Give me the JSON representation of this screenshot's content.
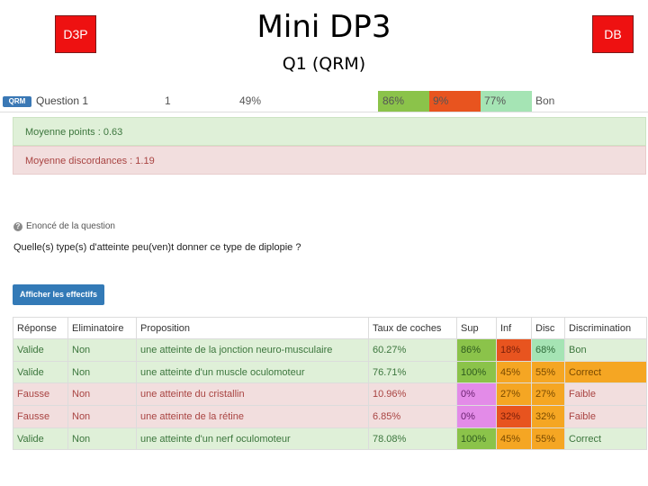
{
  "badges": {
    "left": "D3P",
    "right": "DB"
  },
  "slide": {
    "title": "Mini DP3",
    "subtitle": "Q1 (QRM)"
  },
  "summary": {
    "tag": "QRM",
    "question": "Question 1",
    "number": "1",
    "percent": "49%",
    "sup": "86%",
    "inf": "9%",
    "disc": "77%",
    "rating": "Bon"
  },
  "stats": {
    "mean_points": "Moyenne points : 0.63",
    "mean_discordance": "Moyenne discordances : 1.19"
  },
  "statement": {
    "icon": "info-icon",
    "header": "Enoncé de la question",
    "text": "Quelle(s) type(s) d'atteinte peu(ven)t donner ce type de diplopie ?"
  },
  "button": {
    "show_counts": "Afficher les effectifs"
  },
  "table": {
    "headers": [
      "Réponse",
      "Eliminatoire",
      "Proposition",
      "Taux de coches",
      "Sup",
      "Inf",
      "Disc",
      "Discrimination"
    ],
    "rows": [
      [
        "Valide",
        "Non",
        "une atteinte de la jonction neuro-musculaire",
        "60.27%",
        "86%",
        "18%",
        "68%",
        "Bon"
      ],
      [
        "Valide",
        "Non",
        "une atteinte d'un muscle oculomoteur",
        "76.71%",
        "100%",
        "45%",
        "55%",
        "Correct"
      ],
      [
        "Fausse",
        "Non",
        "une atteinte du cristallin",
        "10.96%",
        "0%",
        "27%",
        "27%",
        "Faible"
      ],
      [
        "Fausse",
        "Non",
        "une atteinte de la rétine",
        "6.85%",
        "0%",
        "32%",
        "32%",
        "Faible"
      ],
      [
        "Valide",
        "Non",
        "une atteinte d'un nerf oculomoteur",
        "78.08%",
        "100%",
        "45%",
        "55%",
        "Correct"
      ]
    ]
  },
  "colors": {
    "badge": "#ee1111",
    "success_bg": "#dff0d8",
    "danger_bg": "#f2dede",
    "green": "#8bc34a",
    "red": "#e8541f",
    "pink": "#e38be8",
    "orange": "#f5a623",
    "light_green": "#a5e4b4",
    "button": "#337ab7"
  }
}
